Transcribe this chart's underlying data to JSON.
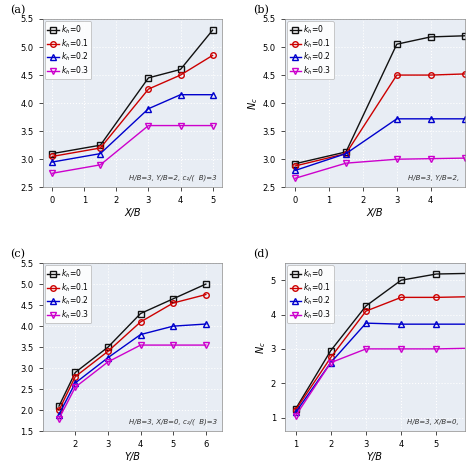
{
  "panel_a": {
    "label": "(a)",
    "xlabel": "X/B",
    "ylabel": "",
    "annotation": "H/B=3, Y/B=2, c₂/(  B)=3",
    "xlim": [
      -0.3,
      5.3
    ],
    "ylim": [
      2.5,
      5.5
    ],
    "xticks": [
      0,
      1,
      2,
      3,
      4,
      5
    ],
    "x": [
      0,
      1.5,
      3,
      4,
      5
    ],
    "series": {
      "k_h=0": {
        "y": [
          3.1,
          3.25,
          4.45,
          4.6,
          5.3
        ],
        "color": "#111111",
        "marker": "s"
      },
      "k_h=0.1": {
        "y": [
          3.05,
          3.2,
          4.25,
          4.5,
          4.85
        ],
        "color": "#cc0000",
        "marker": "o"
      },
      "k_h=0.2": {
        "y": [
          2.95,
          3.1,
          3.9,
          4.15,
          4.15
        ],
        "color": "#0000cc",
        "marker": "^"
      },
      "k_h=0.3": {
        "y": [
          2.75,
          2.9,
          3.6,
          3.6,
          3.6
        ],
        "color": "#cc00cc",
        "marker": "v"
      }
    }
  },
  "panel_b": {
    "label": "(b)",
    "xlabel": "X/B",
    "ylabel": "N_c",
    "annotation": "H/B=3, Y/B=2,",
    "xlim": [
      -0.3,
      5.0
    ],
    "ylim": [
      2.5,
      5.5
    ],
    "yticks": [
      2.5,
      3.0,
      3.5,
      4.0,
      4.5,
      5.0,
      5.5
    ],
    "xticks": [
      0,
      1,
      2,
      3,
      4
    ],
    "x": [
      0,
      1.5,
      3,
      4,
      5
    ],
    "series": {
      "k_h=0": {
        "y": [
          2.92,
          3.13,
          5.05,
          5.18,
          5.2
        ],
        "color": "#111111",
        "marker": "s"
      },
      "k_h=0.1": {
        "y": [
          2.88,
          3.1,
          4.5,
          4.5,
          4.52
        ],
        "color": "#cc0000",
        "marker": "o"
      },
      "k_h=0.2": {
        "y": [
          2.8,
          3.1,
          3.72,
          3.72,
          3.72
        ],
        "color": "#0000cc",
        "marker": "^"
      },
      "k_h=0.3": {
        "y": [
          2.66,
          2.93,
          3.0,
          3.01,
          3.02
        ],
        "color": "#cc00cc",
        "marker": "v"
      }
    }
  },
  "panel_c": {
    "label": "(c)",
    "xlabel": "Y/B",
    "ylabel": "",
    "annotation": "H/B=3, X/B=0, c₂/(  B)=3",
    "xlim": [
      1.0,
      6.5
    ],
    "ylim": [
      1.5,
      5.5
    ],
    "xticks": [
      2,
      3,
      4,
      5,
      6
    ],
    "x": [
      1.5,
      2,
      3,
      4,
      5,
      6
    ],
    "series": {
      "k_h=0": {
        "y": [
          2.1,
          2.9,
          3.5,
          4.3,
          4.65,
          5.0
        ],
        "color": "#111111",
        "marker": "s"
      },
      "k_h=0.1": {
        "y": [
          2.0,
          2.8,
          3.4,
          4.1,
          4.55,
          4.75
        ],
        "color": "#cc0000",
        "marker": "o"
      },
      "k_h=0.2": {
        "y": [
          1.9,
          2.65,
          3.25,
          3.8,
          4.0,
          4.05
        ],
        "color": "#0000cc",
        "marker": "^"
      },
      "k_h=0.3": {
        "y": [
          1.8,
          2.55,
          3.15,
          3.55,
          3.55,
          3.55
        ],
        "color": "#cc00cc",
        "marker": "v"
      }
    }
  },
  "panel_d": {
    "label": "(d)",
    "xlabel": "Y/B",
    "ylabel": "N_c",
    "annotation": "H/B=3, X/B=0,",
    "xlim": [
      0.7,
      5.8
    ],
    "ylim": [
      0.6,
      5.5
    ],
    "yticks": [
      1,
      2,
      3,
      4,
      5
    ],
    "xticks": [
      1,
      2,
      3,
      4,
      5
    ],
    "x": [
      1,
      2,
      3,
      4,
      5,
      6
    ],
    "series": {
      "k_h=0": {
        "y": [
          1.25,
          2.95,
          4.25,
          5.0,
          5.18,
          5.2
        ],
        "color": "#111111",
        "marker": "s"
      },
      "k_h=0.1": {
        "y": [
          1.22,
          2.75,
          4.1,
          4.5,
          4.5,
          4.52
        ],
        "color": "#cc0000",
        "marker": "o"
      },
      "k_h=0.2": {
        "y": [
          1.15,
          2.6,
          3.75,
          3.72,
          3.72,
          3.72
        ],
        "color": "#0000cc",
        "marker": "^"
      },
      "k_h=0.3": {
        "y": [
          1.05,
          2.6,
          3.0,
          3.0,
          3.0,
          3.02
        ],
        "color": "#cc00cc",
        "marker": "v"
      }
    }
  },
  "bg_color": "#e8edf4",
  "grid_color": "#ffffff",
  "linewidth": 1.0,
  "markersize": 4
}
